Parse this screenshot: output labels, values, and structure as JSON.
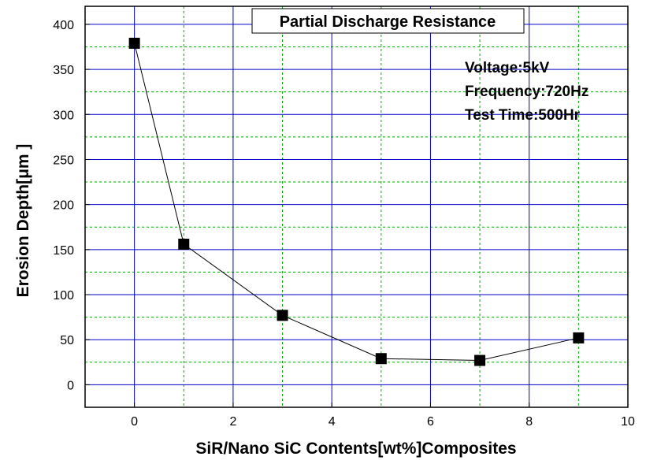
{
  "chart_data": {
    "type": "line",
    "title": "Partial Discharge Resistance",
    "xlabel": "SiR/Nano SiC Contents[wt%]Composites",
    "ylabel": "Erosion Depth[μm ]",
    "x": [
      0,
      1,
      3,
      5,
      7,
      9
    ],
    "series": [
      {
        "values": [
          379,
          156,
          77,
          29,
          27,
          52
        ],
        "marker": "square",
        "color": "#000000"
      }
    ],
    "xlim": [
      -1,
      10
    ],
    "ylim": [
      -25,
      420
    ],
    "xticks": [
      0,
      2,
      4,
      6,
      8,
      10
    ],
    "yticks": [
      0,
      50,
      100,
      150,
      200,
      250,
      300,
      350,
      400
    ],
    "grid": true,
    "grid_major_color": "#0000cc",
    "grid_minor_color": "#00aa00",
    "annotations": [
      "Voltage:5kV",
      "Frequency:720Hz",
      "Test Time:500Hr"
    ]
  }
}
